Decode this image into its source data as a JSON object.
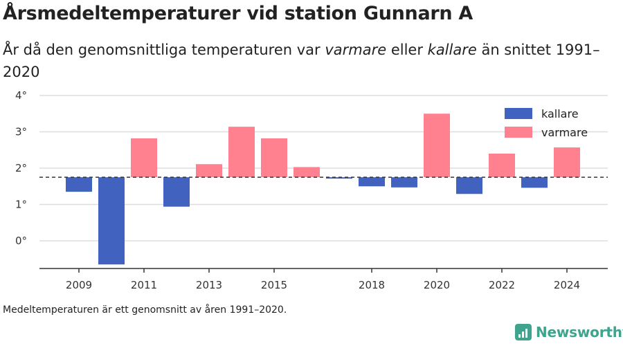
{
  "title": "Årsmedeltemperaturer vid station Gunnarn A",
  "subtitle": {
    "part1": "År då den genomsnittliga temperaturen var ",
    "warmer": "varmare",
    "part2": " eller ",
    "colder": "kallare",
    "part3": " än snittet 1991–2020"
  },
  "footnote": "Medeltemperaturen är ett genomsnitt av åren 1991–2020.",
  "brand": "Newsworthy",
  "colors": {
    "kallare": "#4262c0",
    "varmare": "#ff808e",
    "grid": "#dddddd",
    "axis": "#333333",
    "brand": "#3fa38d"
  },
  "chart_data": {
    "type": "bar",
    "baseline": 1.75,
    "ylim": [
      -0.7,
      4.0
    ],
    "yticks": [
      0,
      1,
      2,
      3,
      4
    ],
    "ytick_labels": [
      "0°",
      "1°",
      "2°",
      "3°",
      "4°"
    ],
    "xlim": [
      2008,
      2025
    ],
    "xticks": [
      2009,
      2011,
      2013,
      2015,
      2018,
      2020,
      2022,
      2024
    ],
    "legend": {
      "placement": "top-right",
      "entries": [
        "kallare",
        "varmare"
      ]
    },
    "bars": [
      {
        "year": 2009,
        "value": 1.35
      },
      {
        "year": 2010,
        "value": -0.65
      },
      {
        "year": 2011,
        "value": 2.82
      },
      {
        "year": 2012,
        "value": 0.94
      },
      {
        "year": 2013,
        "value": 2.11
      },
      {
        "year": 2014,
        "value": 3.14
      },
      {
        "year": 2015,
        "value": 2.82
      },
      {
        "year": 2016,
        "value": 2.03
      },
      {
        "year": 2017,
        "value": 1.72
      },
      {
        "year": 2018,
        "value": 1.5
      },
      {
        "year": 2019,
        "value": 1.47
      },
      {
        "year": 2020,
        "value": 3.5
      },
      {
        "year": 2021,
        "value": 1.29
      },
      {
        "year": 2022,
        "value": 2.4
      },
      {
        "year": 2023,
        "value": 1.46
      },
      {
        "year": 2024,
        "value": 2.57
      }
    ]
  }
}
